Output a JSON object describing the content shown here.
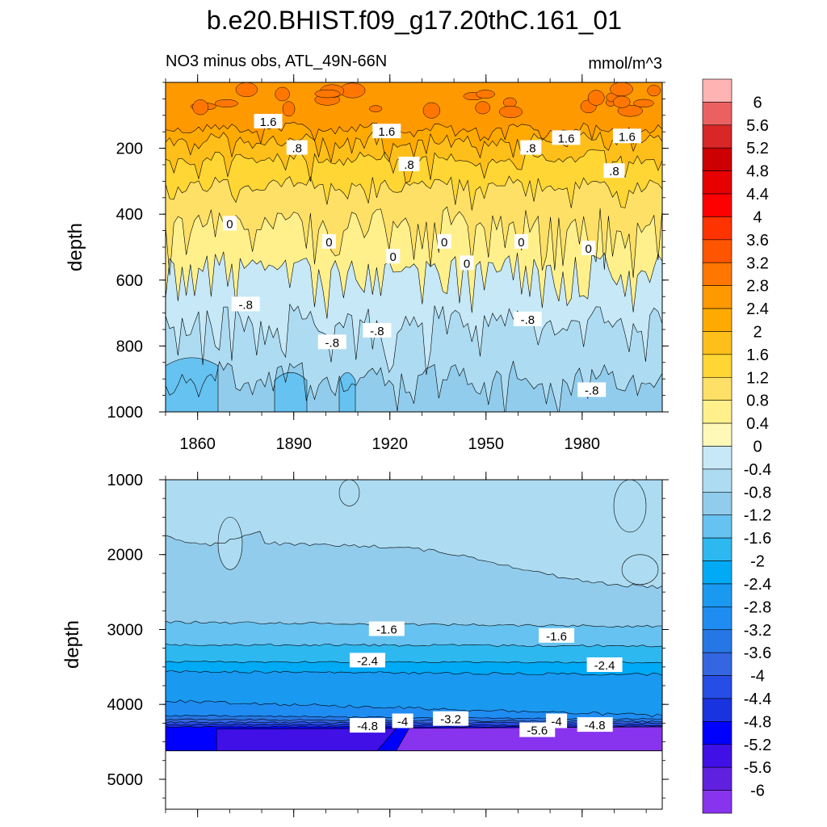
{
  "chart_data": {
    "type": "contour",
    "title": "b.e20.BHIST.f09_g17.20thC.161_01",
    "subtitle_left": "NO3 minus obs, ATL_49N-66N",
    "units": "mmol/m^3",
    "ylabel": "depth",
    "x_ticks": [
      "1860",
      "1890",
      "1920",
      "1950",
      "1980"
    ],
    "x_tick_values": [
      1860,
      1890,
      1920,
      1950,
      1980
    ],
    "xlim": [
      1850,
      2005
    ],
    "top_panel": {
      "ylim": [
        0,
        1000
      ],
      "y_ticks": [
        "200",
        "400",
        "600",
        "800",
        "1000"
      ],
      "y_tick_values": [
        200,
        400,
        600,
        800,
        1000
      ],
      "band_boundaries": {
        "y_1.6": 140,
        "y_1.2": 175,
        "y_0.8": 230,
        "y_0.4": 310,
        "y_0": 420,
        "y_-0.4": 550,
        "y_-0.8": 720,
        "y_-1.2": 900
      },
      "contour_labels": [
        {
          "text": "1.6",
          "x": 1882,
          "y": 120
        },
        {
          "text": ".8",
          "x": 1891,
          "y": 200
        },
        {
          "text": "1.6",
          "x": 1919,
          "y": 150
        },
        {
          "text": ".8",
          "x": 1926,
          "y": 250
        },
        {
          "text": ".8",
          "x": 1964,
          "y": 200
        },
        {
          "text": "1.6",
          "x": 1975,
          "y": 170
        },
        {
          "text": ".8",
          "x": 1990,
          "y": 270
        },
        {
          "text": "1.6",
          "x": 1994,
          "y": 165
        },
        {
          "text": "0",
          "x": 1870,
          "y": 430
        },
        {
          "text": "0",
          "x": 1901,
          "y": 485
        },
        {
          "text": "0",
          "x": 1921,
          "y": 530
        },
        {
          "text": "0",
          "x": 1937,
          "y": 485
        },
        {
          "text": "0",
          "x": 1944,
          "y": 550
        },
        {
          "text": "0",
          "x": 1961,
          "y": 485
        },
        {
          "text": "0",
          "x": 1982,
          "y": 505
        },
        {
          "text": "-.8",
          "x": 1875,
          "y": 675
        },
        {
          "text": "-.8",
          "x": 1902,
          "y": 790
        },
        {
          "text": "-.8",
          "x": 1916,
          "y": 755
        },
        {
          "text": "-.8",
          "x": 1963,
          "y": 720
        },
        {
          "text": "-.8",
          "x": 1983,
          "y": 935
        }
      ]
    },
    "bottom_panel": {
      "ylim": [
        1000,
        5400
      ],
      "y_ticks": [
        "1000",
        "2000",
        "3000",
        "4000",
        "5000"
      ],
      "y_tick_values": [
        1000,
        2000,
        3000,
        4000,
        5000
      ],
      "data_bottom_depth": 4620,
      "contour_labels": [
        {
          "text": "-1.6",
          "x": 1919,
          "y": 3000
        },
        {
          "text": "-1.6",
          "x": 1972,
          "y": 3090
        },
        {
          "text": "-2.4",
          "x": 1913,
          "y": 3420
        },
        {
          "text": "-2.4",
          "x": 1987,
          "y": 3480
        },
        {
          "text": "-4.8",
          "x": 1913,
          "y": 4290
        },
        {
          "text": "-4",
          "x": 1924,
          "y": 4230
        },
        {
          "text": "-3.2",
          "x": 1939,
          "y": 4200
        },
        {
          "text": "-5.6",
          "x": 1966,
          "y": 4350
        },
        {
          "text": "-4",
          "x": 1972,
          "y": 4230
        },
        {
          "text": "-4.8",
          "x": 1984,
          "y": 4280
        }
      ]
    },
    "colorbar": {
      "levels": [
        "6",
        "5.6",
        "5.2",
        "4.8",
        "4.4",
        "4",
        "3.6",
        "3.2",
        "2.8",
        "2.4",
        "2",
        "1.6",
        "1.2",
        "0.8",
        "0.4",
        "0",
        "-0.4",
        "-0.8",
        "-1.2",
        "-1.6",
        "-2",
        "-2.4",
        "-2.8",
        "-3.2",
        "-3.6",
        "-4",
        "-4.4",
        "-4.8",
        "-5.2",
        "-5.6",
        "-6"
      ],
      "colors": [
        "#ffb3b3",
        "#eb6161",
        "#d92626",
        "#cc0000",
        "#e60000",
        "#ff0000",
        "#ff3300",
        "#ff5500",
        "#ff7700",
        "#ff9900",
        "#ffaa00",
        "#ffbf1a",
        "#ffd633",
        "#ffe066",
        "#fff08c",
        "#fff9b8",
        "#c6e8f7",
        "#addcf2",
        "#91ccec",
        "#66c2f0",
        "#2eb8f0",
        "#00aaf5",
        "#1a99f0",
        "#1f8cf2",
        "#2677e6",
        "#3366e0",
        "#264de6",
        "#1a33e0",
        "#0000ff",
        "#4010e6",
        "#6020e0",
        "#8833ee"
      ]
    }
  }
}
